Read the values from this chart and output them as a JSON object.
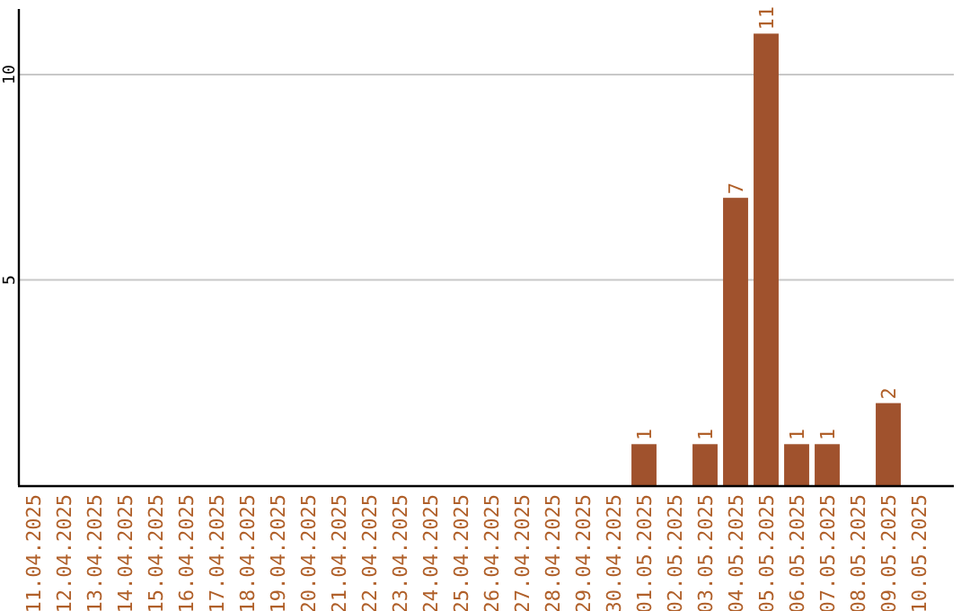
{
  "chart_data": {
    "type": "bar",
    "categories": [
      "11.04.2025",
      "12.04.2025",
      "13.04.2025",
      "14.04.2025",
      "15.04.2025",
      "16.04.2025",
      "17.04.2025",
      "18.04.2025",
      "19.04.2025",
      "20.04.2025",
      "21.04.2025",
      "22.04.2025",
      "23.04.2025",
      "24.04.2025",
      "25.04.2025",
      "26.04.2025",
      "27.04.2025",
      "28.04.2025",
      "29.04.2025",
      "30.04.2025",
      "01.05.2025",
      "02.05.2025",
      "03.05.2025",
      "04.05.2025",
      "05.05.2025",
      "06.05.2025",
      "07.05.2025",
      "08.05.2025",
      "09.05.2025",
      "10.05.2025"
    ],
    "values": [
      null,
      null,
      null,
      null,
      null,
      null,
      null,
      null,
      null,
      null,
      null,
      null,
      null,
      null,
      null,
      null,
      null,
      null,
      null,
      null,
      1,
      null,
      1,
      7,
      11,
      1,
      1,
      null,
      2,
      null
    ],
    "color": "#a0522d",
    "ylim": [
      0,
      11.6
    ],
    "yticks": [
      5,
      10
    ],
    "grid": "y",
    "data_labels": true
  }
}
